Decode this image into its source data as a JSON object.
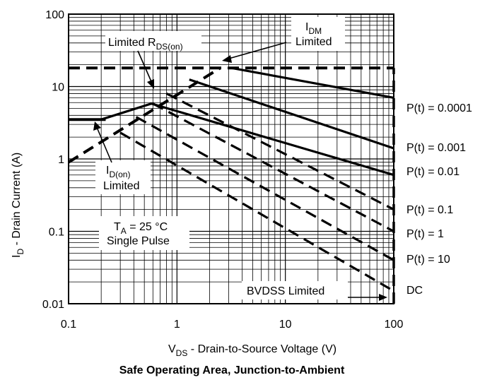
{
  "chart_data": {
    "type": "line",
    "title": "Safe Operating Area, Junction-to-Ambient",
    "xlabel": {
      "main": "V",
      "sub": "DS",
      "rest": " -  Drain-to-Source Voltage (V)"
    },
    "ylabel": {
      "main": "I",
      "sub": "D",
      "rest": "  -  Drain Current (A)"
    },
    "x_scale": "log",
    "y_scale": "log",
    "xlim": [
      0.1,
      100
    ],
    "ylim": [
      0.01,
      100
    ],
    "x_ticks": [
      0.1,
      1,
      10,
      100
    ],
    "x_tick_labels": [
      "0.1",
      "1",
      "10",
      "100"
    ],
    "y_ticks": [
      0.01,
      0.1,
      1,
      10,
      100
    ],
    "y_tick_labels": [
      "0.01",
      "0.1",
      "1",
      "10",
      "100"
    ],
    "grid": true,
    "limit_lines": [
      {
        "id": "idm",
        "style": "dashed",
        "points": [
          [
            0.1,
            18
          ],
          [
            100,
            18
          ]
        ]
      },
      {
        "id": "rds",
        "style": "dashed",
        "points": [
          [
            0.1,
            0.9
          ],
          [
            2.5,
            18
          ]
        ]
      },
      {
        "id": "idon",
        "style": "solid",
        "points": [
          [
            0.1,
            3.5
          ],
          [
            0.22,
            3.5
          ]
        ]
      },
      {
        "id": "bvdss",
        "style": "dashed",
        "points": [
          [
            100,
            0.01
          ],
          [
            100,
            18
          ]
        ]
      }
    ],
    "series": [
      {
        "name": "P(t) = 0.0001",
        "style": "solid",
        "points": [
          [
            3.2,
            18
          ],
          [
            100,
            7
          ]
        ]
      },
      {
        "name": "P(t) = 0.001",
        "style": "solid",
        "points": [
          [
            1.3,
            12.5
          ],
          [
            100,
            1.4
          ]
        ]
      },
      {
        "name": "P(t) = 0.01",
        "style": "solid",
        "points": [
          [
            0.2,
            3.5
          ],
          [
            0.58,
            5.8
          ],
          [
            100,
            0.6
          ]
        ]
      },
      {
        "name": "P(t) = 0.1",
        "style": "dashed",
        "points": [
          [
            0.8,
            8
          ],
          [
            100,
            0.2
          ]
        ]
      },
      {
        "name": "P(t) = 1",
        "style": "dashed",
        "points": [
          [
            0.6,
            5.8
          ],
          [
            100,
            0.1
          ]
        ]
      },
      {
        "name": "P(t) = 10",
        "style": "dashed",
        "points": [
          [
            0.42,
            3.8
          ],
          [
            100,
            0.04
          ]
        ]
      },
      {
        "name": "DC",
        "style": "dashed",
        "points": [
          [
            0.3,
            2.3
          ],
          [
            100,
            0.015
          ]
        ]
      }
    ],
    "annotations": {
      "rds": {
        "main": "Limited R",
        "sub": "DS(on)"
      },
      "idm": {
        "main": "I",
        "sub": "DM",
        "line2": "Limited"
      },
      "idon": {
        "main": "I",
        "sub": "D(on)",
        "line2": "Limited"
      },
      "ta": {
        "main": "T",
        "sub": "A",
        "rest": " = 25  °C",
        "line2": "Single Pulse"
      },
      "bvdss": "BVDSS Limited"
    }
  }
}
